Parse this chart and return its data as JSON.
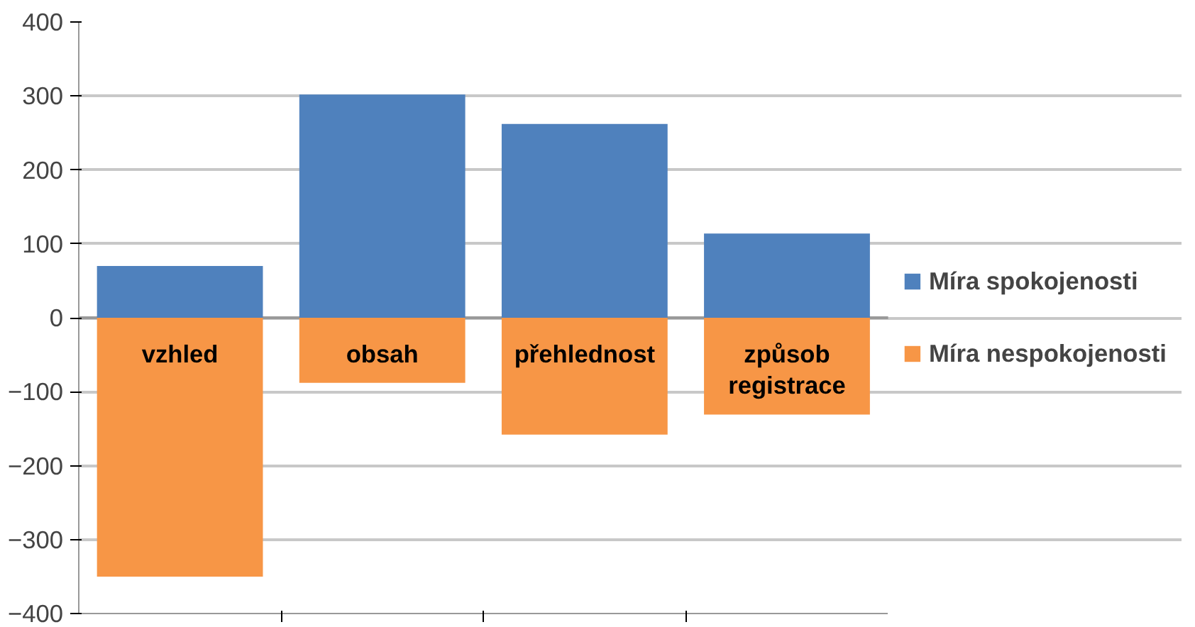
{
  "chart_data": {
    "type": "bar",
    "stacked": true,
    "categories": [
      "vzhled",
      "obsah",
      "přehlednost",
      "způsob registrace"
    ],
    "series": [
      {
        "name": "Míra spokojenosti",
        "color": "#4f81bd",
        "values": [
          70,
          302,
          262,
          114
        ]
      },
      {
        "name": "Míra nespokojenosti",
        "color": "#f79646",
        "values": [
          -350,
          -88,
          -158,
          -131
        ]
      }
    ],
    "ylim": [
      -400,
      400
    ],
    "yticks": [
      -400,
      -300,
      -200,
      -100,
      0,
      100,
      200,
      300,
      400
    ],
    "grid": "y",
    "legend": "right",
    "tick_labels": "y"
  }
}
